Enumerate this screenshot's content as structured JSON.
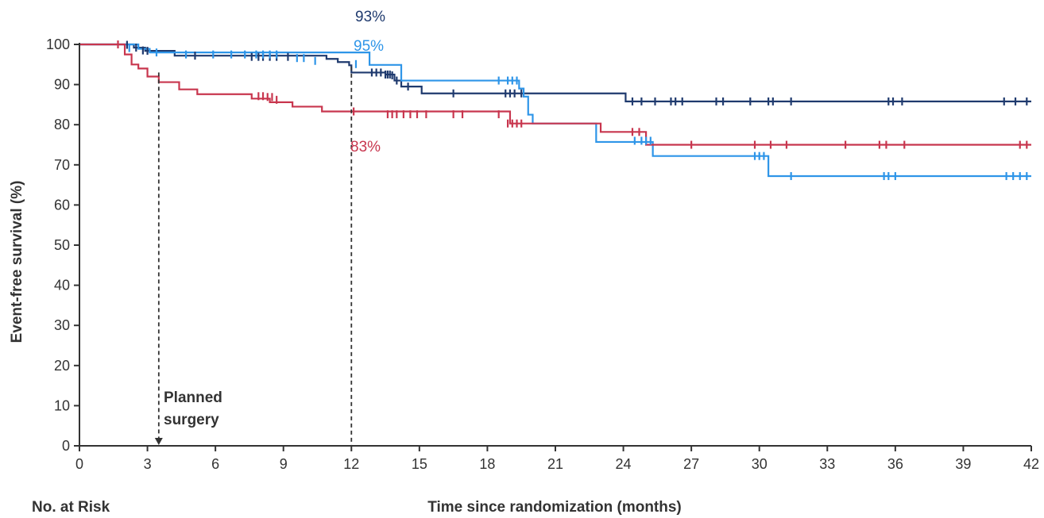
{
  "chart_data": {
    "type": "line",
    "title": "",
    "xlabel": "Time since randomization (months)",
    "ylabel": "Event-free survival (%)",
    "xlim": [
      0,
      42
    ],
    "ylim": [
      0,
      100
    ],
    "x_ticks": [
      0,
      3,
      6,
      9,
      12,
      15,
      18,
      21,
      24,
      27,
      30,
      33,
      36,
      39,
      42
    ],
    "y_ticks": [
      0,
      10,
      20,
      30,
      40,
      50,
      60,
      70,
      80,
      90,
      100
    ],
    "grid": false,
    "legend": "none",
    "series": [
      {
        "color": "#1f3a6e",
        "steps": [
          [
            0,
            100
          ],
          [
            2.4,
            99.2
          ],
          [
            2.9,
            98.4
          ],
          [
            4.2,
            97.2
          ],
          [
            10.9,
            96.4
          ],
          [
            11.4,
            95.6
          ],
          [
            11.9,
            94.8
          ],
          [
            12.0,
            93
          ],
          [
            13.5,
            92.5
          ],
          [
            13.9,
            91
          ],
          [
            14.2,
            89.5
          ],
          [
            15.1,
            87.8
          ],
          [
            24.1,
            85.8
          ],
          [
            42,
            85.8
          ]
        ],
        "censors": [
          [
            2.1,
            99.9
          ],
          [
            2.5,
            99.2
          ],
          [
            2.8,
            98.5
          ],
          [
            3.0,
            98.4
          ],
          [
            5.1,
            97.2
          ],
          [
            7.6,
            96.9
          ],
          [
            7.9,
            96.9
          ],
          [
            8.1,
            96.9
          ],
          [
            8.4,
            96.9
          ],
          [
            8.7,
            96.9
          ],
          [
            9.2,
            96.9
          ],
          [
            12.9,
            93
          ],
          [
            13.1,
            93
          ],
          [
            13.3,
            93
          ],
          [
            13.5,
            92.5
          ],
          [
            13.6,
            92.5
          ],
          [
            13.7,
            92.5
          ],
          [
            13.8,
            92.3
          ],
          [
            14.0,
            91
          ],
          [
            14.5,
            89.5
          ],
          [
            16.5,
            87.8
          ],
          [
            18.8,
            87.8
          ],
          [
            19.0,
            87.8
          ],
          [
            19.2,
            87.8
          ],
          [
            19.5,
            87.8
          ],
          [
            24.4,
            85.8
          ],
          [
            24.8,
            85.8
          ],
          [
            25.4,
            85.8
          ],
          [
            26.1,
            85.8
          ],
          [
            26.3,
            85.8
          ],
          [
            26.6,
            85.8
          ],
          [
            28.1,
            85.8
          ],
          [
            28.4,
            85.8
          ],
          [
            29.6,
            85.8
          ],
          [
            30.4,
            85.8
          ],
          [
            30.6,
            85.8
          ],
          [
            31.4,
            85.8
          ],
          [
            35.7,
            85.8
          ],
          [
            35.9,
            85.8
          ],
          [
            36.3,
            85.8
          ],
          [
            40.8,
            85.8
          ],
          [
            41.3,
            85.8
          ],
          [
            41.8,
            85.8
          ]
        ],
        "annotation": "93%"
      },
      {
        "color": "#2e95e8",
        "steps": [
          [
            0,
            100
          ],
          [
            2.6,
            98.9
          ],
          [
            3.1,
            98.0
          ],
          [
            12.8,
            94.9
          ],
          [
            14.2,
            91
          ],
          [
            19.4,
            89
          ],
          [
            19.6,
            87
          ],
          [
            19.8,
            82.5
          ],
          [
            20.0,
            80.3
          ],
          [
            22.8,
            75.7
          ],
          [
            25.3,
            72.2
          ],
          [
            30.4,
            67.2
          ],
          [
            42,
            67.2
          ]
        ],
        "censors": [
          [
            2.2,
            99.1
          ],
          [
            3.4,
            98.0
          ],
          [
            4.7,
            97.5
          ],
          [
            5.9,
            97.5
          ],
          [
            6.7,
            97.5
          ],
          [
            7.3,
            97.5
          ],
          [
            7.8,
            97.5
          ],
          [
            8.1,
            97.5
          ],
          [
            8.4,
            97.5
          ],
          [
            8.7,
            97.5
          ],
          [
            9.6,
            96.6
          ],
          [
            9.9,
            96.6
          ],
          [
            10.4,
            95.9
          ],
          [
            12.2,
            95.1
          ],
          [
            18.5,
            91
          ],
          [
            18.9,
            91
          ],
          [
            19.1,
            91
          ],
          [
            19.3,
            91
          ],
          [
            24.5,
            76
          ],
          [
            24.8,
            76
          ],
          [
            25.0,
            76
          ],
          [
            25.2,
            76
          ],
          [
            29.8,
            72.2
          ],
          [
            30.0,
            72.2
          ],
          [
            30.2,
            72.2
          ],
          [
            31.4,
            67.2
          ],
          [
            35.5,
            67.2
          ],
          [
            35.7,
            67.2
          ],
          [
            36.0,
            67.2
          ],
          [
            40.9,
            67.2
          ],
          [
            41.2,
            67.2
          ],
          [
            41.5,
            67.2
          ],
          [
            41.8,
            67.2
          ]
        ],
        "annotation": "95%"
      },
      {
        "color": "#c8364e",
        "steps": [
          [
            0,
            100
          ],
          [
            2.0,
            97.5
          ],
          [
            2.3,
            95
          ],
          [
            2.6,
            94
          ],
          [
            3.0,
            92
          ],
          [
            3.5,
            90.6
          ],
          [
            4.4,
            88.8
          ],
          [
            5.2,
            87.6
          ],
          [
            7.6,
            86.5
          ],
          [
            8.4,
            85.6
          ],
          [
            9.4,
            84.5
          ],
          [
            10.7,
            83.3
          ],
          [
            19.0,
            80.3
          ],
          [
            19.6,
            80.3
          ],
          [
            23.0,
            78.2
          ],
          [
            25.0,
            75.0
          ],
          [
            42,
            75.0
          ]
        ],
        "censors": [
          [
            1.7,
            100
          ],
          [
            7.9,
            87.1
          ],
          [
            8.1,
            87.1
          ],
          [
            8.3,
            86.9
          ],
          [
            8.5,
            86.9
          ],
          [
            8.7,
            86.2
          ],
          [
            12.1,
            83.3
          ],
          [
            13.6,
            82.6
          ],
          [
            13.8,
            82.6
          ],
          [
            14.0,
            82.6
          ],
          [
            14.3,
            82.6
          ],
          [
            14.6,
            82.6
          ],
          [
            14.9,
            82.6
          ],
          [
            15.3,
            82.6
          ],
          [
            16.5,
            82.6
          ],
          [
            16.9,
            82.6
          ],
          [
            18.5,
            82.6
          ],
          [
            18.9,
            80.3
          ],
          [
            19.1,
            80.3
          ],
          [
            19.3,
            80.3
          ],
          [
            19.5,
            80.3
          ],
          [
            24.4,
            78.2
          ],
          [
            24.7,
            78.2
          ],
          [
            27.0,
            75.0
          ],
          [
            29.8,
            75.0
          ],
          [
            30.5,
            75.0
          ],
          [
            31.2,
            75.0
          ],
          [
            33.8,
            75.0
          ],
          [
            35.3,
            75.0
          ],
          [
            35.6,
            75.0
          ],
          [
            36.4,
            75.0
          ],
          [
            41.5,
            75.0
          ],
          [
            41.8,
            75.0
          ]
        ],
        "annotation": "83%"
      }
    ],
    "reference_lines": [
      {
        "x": 3.5,
        "label_line1": "Planned",
        "label_line2": "surgery",
        "arrow": true
      },
      {
        "x": 12,
        "arrow": false
      }
    ]
  },
  "footer": {
    "risk_label": "No. at Risk"
  }
}
